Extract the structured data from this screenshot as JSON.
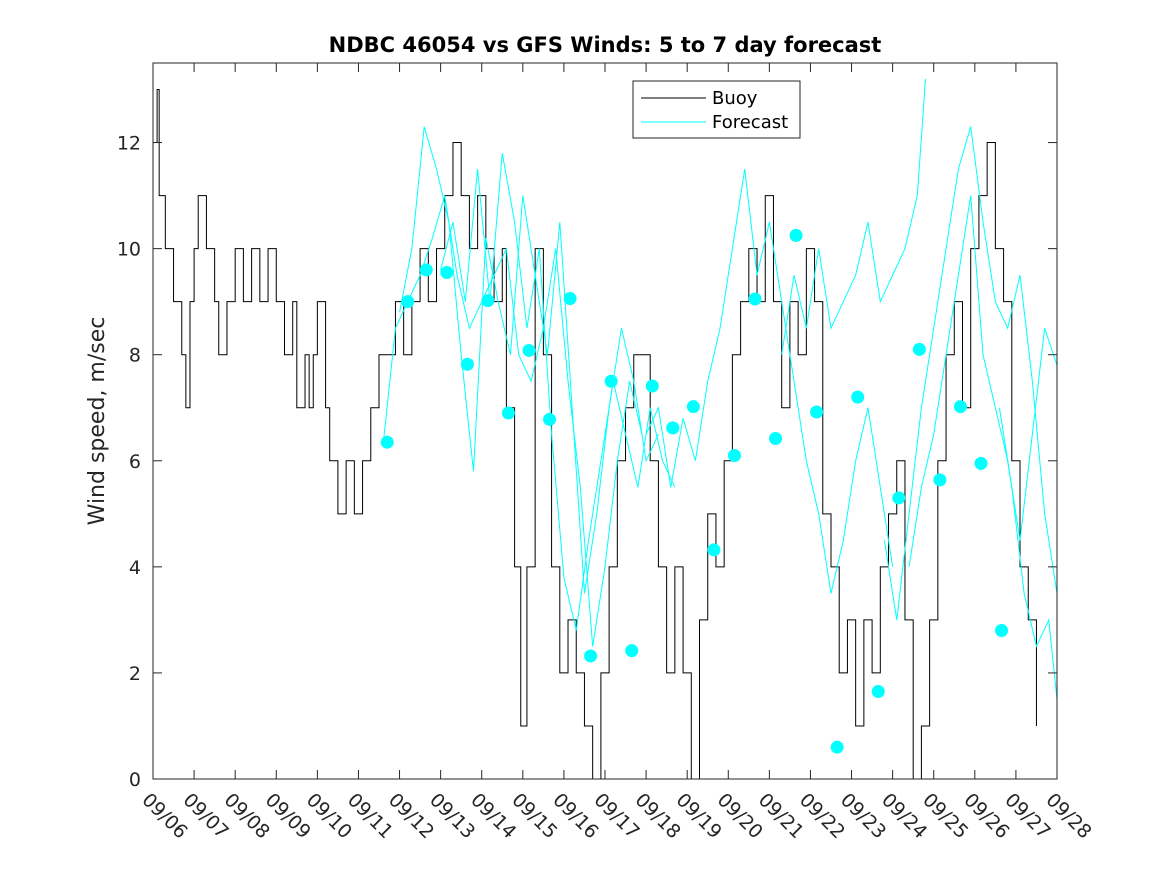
{
  "chart_data": {
    "type": "line",
    "title": "NDBC 46054 vs GFS Winds: 5 to 7 day forecast",
    "xlabel": "",
    "ylabel": "Wind speed, m/sec",
    "xlim": [
      0,
      22
    ],
    "ylim": [
      0,
      13.5
    ],
    "x_tick_labels": [
      "09/06",
      "09/07",
      "09/08",
      "09/09",
      "09/10",
      "09/11",
      "09/12",
      "09/13",
      "09/14",
      "09/15",
      "09/16",
      "09/17",
      "09/18",
      "09/19",
      "09/20",
      "09/21",
      "09/22",
      "09/23",
      "09/24",
      "09/25",
      "09/26",
      "09/27",
      "09/28"
    ],
    "y_ticks": [
      0,
      2,
      4,
      6,
      8,
      10,
      12
    ],
    "legend": {
      "position": "top-center",
      "entries": [
        "Buoy",
        "Forecast"
      ]
    },
    "colors": {
      "buoy": "#000000",
      "forecast": "#00ffff",
      "axis": "#262626"
    },
    "series": [
      {
        "name": "Buoy",
        "points": [
          [
            0,
            12
          ],
          [
            0.1,
            13
          ],
          [
            0.15,
            11
          ],
          [
            0.3,
            10
          ],
          [
            0.5,
            9
          ],
          [
            0.7,
            8
          ],
          [
            0.8,
            7
          ],
          [
            0.9,
            9
          ],
          [
            1.0,
            10
          ],
          [
            1.1,
            11
          ],
          [
            1.3,
            10
          ],
          [
            1.5,
            9
          ],
          [
            1.6,
            8
          ],
          [
            1.8,
            9
          ],
          [
            2.0,
            10
          ],
          [
            2.2,
            9
          ],
          [
            2.4,
            10
          ],
          [
            2.6,
            9
          ],
          [
            2.8,
            10
          ],
          [
            3.0,
            9
          ],
          [
            3.2,
            8
          ],
          [
            3.4,
            9
          ],
          [
            3.5,
            7
          ],
          [
            3.7,
            8
          ],
          [
            3.8,
            7
          ],
          [
            3.9,
            8
          ],
          [
            4.0,
            9
          ],
          [
            4.2,
            7
          ],
          [
            4.3,
            6
          ],
          [
            4.5,
            5
          ],
          [
            4.7,
            6
          ],
          [
            4.9,
            5
          ],
          [
            5.1,
            6
          ],
          [
            5.3,
            7
          ],
          [
            5.5,
            8
          ],
          [
            5.7,
            8
          ],
          [
            5.9,
            9
          ],
          [
            6.1,
            8
          ],
          [
            6.3,
            9
          ],
          [
            6.5,
            10
          ],
          [
            6.7,
            9
          ],
          [
            6.9,
            10
          ],
          [
            7.1,
            11
          ],
          [
            7.3,
            12
          ],
          [
            7.5,
            11
          ],
          [
            7.7,
            10
          ],
          [
            7.9,
            11
          ],
          [
            8.1,
            10
          ],
          [
            8.3,
            9
          ],
          [
            8.5,
            10
          ],
          [
            8.6,
            7
          ],
          [
            8.8,
            4
          ],
          [
            8.95,
            1
          ],
          [
            9.1,
            4
          ],
          [
            9.3,
            10
          ],
          [
            9.5,
            8
          ],
          [
            9.7,
            4
          ],
          [
            9.9,
            2
          ],
          [
            10.1,
            3
          ],
          [
            10.3,
            2
          ],
          [
            10.5,
            1
          ],
          [
            10.7,
            0
          ],
          [
            10.9,
            2
          ],
          [
            11.1,
            4
          ],
          [
            11.3,
            6
          ],
          [
            11.5,
            7
          ],
          [
            11.7,
            8
          ],
          [
            11.9,
            8
          ],
          [
            12.1,
            6
          ],
          [
            12.3,
            4
          ],
          [
            12.5,
            2
          ],
          [
            12.7,
            4
          ],
          [
            12.9,
            2
          ],
          [
            13.1,
            0
          ],
          [
            13.3,
            3
          ],
          [
            13.5,
            5
          ],
          [
            13.7,
            4
          ],
          [
            13.9,
            6
          ],
          [
            14.1,
            8
          ],
          [
            14.3,
            9
          ],
          [
            14.5,
            10
          ],
          [
            14.7,
            9
          ],
          [
            14.9,
            11
          ],
          [
            15.1,
            9
          ],
          [
            15.3,
            7
          ],
          [
            15.5,
            9
          ],
          [
            15.7,
            8
          ],
          [
            15.9,
            10
          ],
          [
            16.1,
            9
          ],
          [
            16.3,
            5
          ],
          [
            16.5,
            4
          ],
          [
            16.7,
            2
          ],
          [
            16.9,
            3
          ],
          [
            17.1,
            1
          ],
          [
            17.3,
            3
          ],
          [
            17.5,
            2
          ],
          [
            17.7,
            4
          ],
          [
            17.9,
            5
          ],
          [
            18.1,
            6
          ],
          [
            18.3,
            3
          ],
          [
            18.5,
            0
          ],
          [
            18.7,
            1
          ],
          [
            18.9,
            3
          ],
          [
            19.1,
            6
          ],
          [
            19.3,
            8
          ],
          [
            19.5,
            9
          ],
          [
            19.7,
            7
          ],
          [
            19.9,
            10
          ],
          [
            20.1,
            11
          ],
          [
            20.3,
            12
          ],
          [
            20.5,
            10
          ],
          [
            20.7,
            9
          ],
          [
            20.9,
            6
          ],
          [
            21.1,
            4
          ],
          [
            21.3,
            3
          ],
          [
            21.5,
            1
          ]
        ]
      },
      {
        "name": "Forecast",
        "lines": [
          [
            [
              5.6,
              6.3
            ],
            [
              5.9,
              8.5
            ],
            [
              6.2,
              9.0
            ],
            [
              6.5,
              9.5
            ],
            [
              6.8,
              10.2
            ],
            [
              7.1,
              11.0
            ],
            [
              7.4,
              9.5
            ],
            [
              7.7,
              8.5
            ],
            [
              8.0,
              9.0
            ],
            [
              8.3,
              9.5
            ],
            [
              8.6,
              10.0
            ],
            [
              8.9,
              8.0
            ],
            [
              9.2,
              7.5
            ],
            [
              9.5,
              8.5
            ],
            [
              9.8,
              10.0
            ],
            [
              10.1,
              7.5
            ],
            [
              10.4,
              5.5
            ],
            [
              10.7,
              2.5
            ],
            [
              11.0,
              4.0
            ],
            [
              11.3,
              6.0
            ],
            [
              11.6,
              7.5
            ],
            [
              11.9,
              6.5
            ]
          ],
          [
            [
              6.0,
              8.8
            ],
            [
              6.3,
              10.0
            ],
            [
              6.6,
              12.3
            ],
            [
              6.9,
              11.5
            ],
            [
              7.2,
              10.5
            ],
            [
              7.5,
              8.0
            ],
            [
              7.8,
              5.8
            ],
            [
              8.1,
              10.2
            ],
            [
              8.4,
              9.0
            ],
            [
              8.7,
              8.0
            ],
            [
              9.0,
              11.0
            ],
            [
              9.3,
              9.5
            ],
            [
              9.6,
              8.0
            ],
            [
              9.9,
              10.5
            ],
            [
              10.2,
              7.0
            ],
            [
              10.5,
              3.5
            ],
            [
              10.8,
              5.0
            ],
            [
              11.1,
              7.0
            ],
            [
              11.4,
              8.5
            ],
            [
              11.7,
              7.5
            ],
            [
              12.0,
              6.0
            ],
            [
              12.3,
              6.5
            ]
          ],
          [
            [
              7.0,
              9.6
            ],
            [
              7.3,
              10.5
            ],
            [
              7.6,
              9.0
            ],
            [
              7.9,
              11.5
            ],
            [
              8.2,
              9.0
            ],
            [
              8.5,
              11.8
            ],
            [
              8.8,
              10.5
            ],
            [
              9.1,
              8.5
            ],
            [
              9.4,
              10.0
            ],
            [
              9.7,
              6.5
            ],
            [
              10.0,
              3.8
            ],
            [
              10.3,
              2.8
            ],
            [
              10.6,
              4.5
            ],
            [
              10.9,
              6.0
            ],
            [
              11.2,
              7.5
            ],
            [
              11.5,
              6.5
            ],
            [
              11.8,
              5.5
            ],
            [
              12.1,
              7.0
            ],
            [
              12.4,
              6.0
            ],
            [
              12.7,
              5.5
            ]
          ],
          [
            [
              12.0,
              6.5
            ],
            [
              12.3,
              7.0
            ],
            [
              12.6,
              5.5
            ],
            [
              12.9,
              6.8
            ],
            [
              13.2,
              6.0
            ],
            [
              13.5,
              7.5
            ],
            [
              13.8,
              8.5
            ],
            [
              14.1,
              10.0
            ],
            [
              14.4,
              11.5
            ],
            [
              14.7,
              9.5
            ],
            [
              15.0,
              10.5
            ],
            [
              15.3,
              9.0
            ],
            [
              15.6,
              7.5
            ],
            [
              15.9,
              6.0
            ],
            [
              16.2,
              5.0
            ],
            [
              16.5,
              3.5
            ],
            [
              16.8,
              4.5
            ],
            [
              17.1,
              6.0
            ],
            [
              17.4,
              7.0
            ],
            [
              17.7,
              5.5
            ],
            [
              18.0,
              4.0
            ]
          ],
          [
            [
              15.3,
              8.0
            ],
            [
              15.6,
              9.5
            ],
            [
              15.9,
              8.5
            ],
            [
              16.2,
              10.0
            ],
            [
              16.5,
              8.5
            ],
            [
              16.8,
              9.0
            ],
            [
              17.1,
              9.5
            ],
            [
              17.4,
              10.5
            ],
            [
              17.7,
              9.0
            ],
            [
              18.0,
              9.5
            ],
            [
              18.3,
              10.0
            ],
            [
              18.6,
              11.0
            ],
            [
              18.8,
              13.2
            ]
          ],
          [
            [
              17.8,
              4.5
            ],
            [
              18.1,
              3.0
            ],
            [
              18.4,
              5.0
            ],
            [
              18.7,
              7.0
            ],
            [
              19.0,
              8.5
            ],
            [
              19.3,
              10.0
            ],
            [
              19.6,
              11.5
            ],
            [
              19.9,
              12.3
            ],
            [
              20.2,
              10.5
            ],
            [
              20.5,
              9.0
            ],
            [
              20.8,
              8.5
            ],
            [
              21.1,
              9.5
            ],
            [
              21.4,
              7.5
            ],
            [
              21.7,
              5.0
            ],
            [
              22.0,
              3.5
            ]
          ],
          [
            [
              18.4,
              4.0
            ],
            [
              18.7,
              5.5
            ],
            [
              19.0,
              6.5
            ],
            [
              19.3,
              8.0
            ],
            [
              19.6,
              9.5
            ],
            [
              19.9,
              11.0
            ],
            [
              20.2,
              8.0
            ],
            [
              20.5,
              7.0
            ],
            [
              20.8,
              6.0
            ],
            [
              21.1,
              4.5
            ],
            [
              21.4,
              6.5
            ],
            [
              21.7,
              8.5
            ],
            [
              22.0,
              7.8
            ]
          ],
          [
            [
              20.6,
              7.0
            ],
            [
              20.9,
              5.5
            ],
            [
              21.2,
              3.5
            ],
            [
              21.5,
              2.5
            ],
            [
              21.8,
              3.0
            ],
            [
              22.0,
              1.5
            ]
          ]
        ],
        "markers": [
          [
            5.7,
            6.35
          ],
          [
            6.2,
            9.0
          ],
          [
            6.65,
            9.6
          ],
          [
            7.15,
            9.55
          ],
          [
            7.65,
            7.82
          ],
          [
            8.15,
            9.02
          ],
          [
            8.65,
            6.9
          ],
          [
            9.15,
            8.08
          ],
          [
            9.65,
            6.78
          ],
          [
            10.15,
            9.06
          ],
          [
            10.65,
            2.32
          ],
          [
            11.15,
            7.5
          ],
          [
            11.65,
            2.42
          ],
          [
            12.15,
            7.41
          ],
          [
            12.65,
            6.62
          ],
          [
            13.15,
            7.02
          ],
          [
            13.65,
            4.32
          ],
          [
            14.15,
            6.1
          ],
          [
            14.65,
            9.05
          ],
          [
            15.15,
            6.42
          ],
          [
            15.65,
            10.25
          ],
          [
            16.15,
            6.92
          ],
          [
            16.65,
            0.6
          ],
          [
            17.15,
            7.2
          ],
          [
            17.65,
            1.65
          ],
          [
            18.15,
            5.3
          ],
          [
            18.65,
            8.1
          ],
          [
            19.15,
            5.64
          ],
          [
            19.65,
            7.02
          ],
          [
            20.15,
            5.95
          ],
          [
            20.65,
            2.8
          ]
        ]
      }
    ]
  }
}
